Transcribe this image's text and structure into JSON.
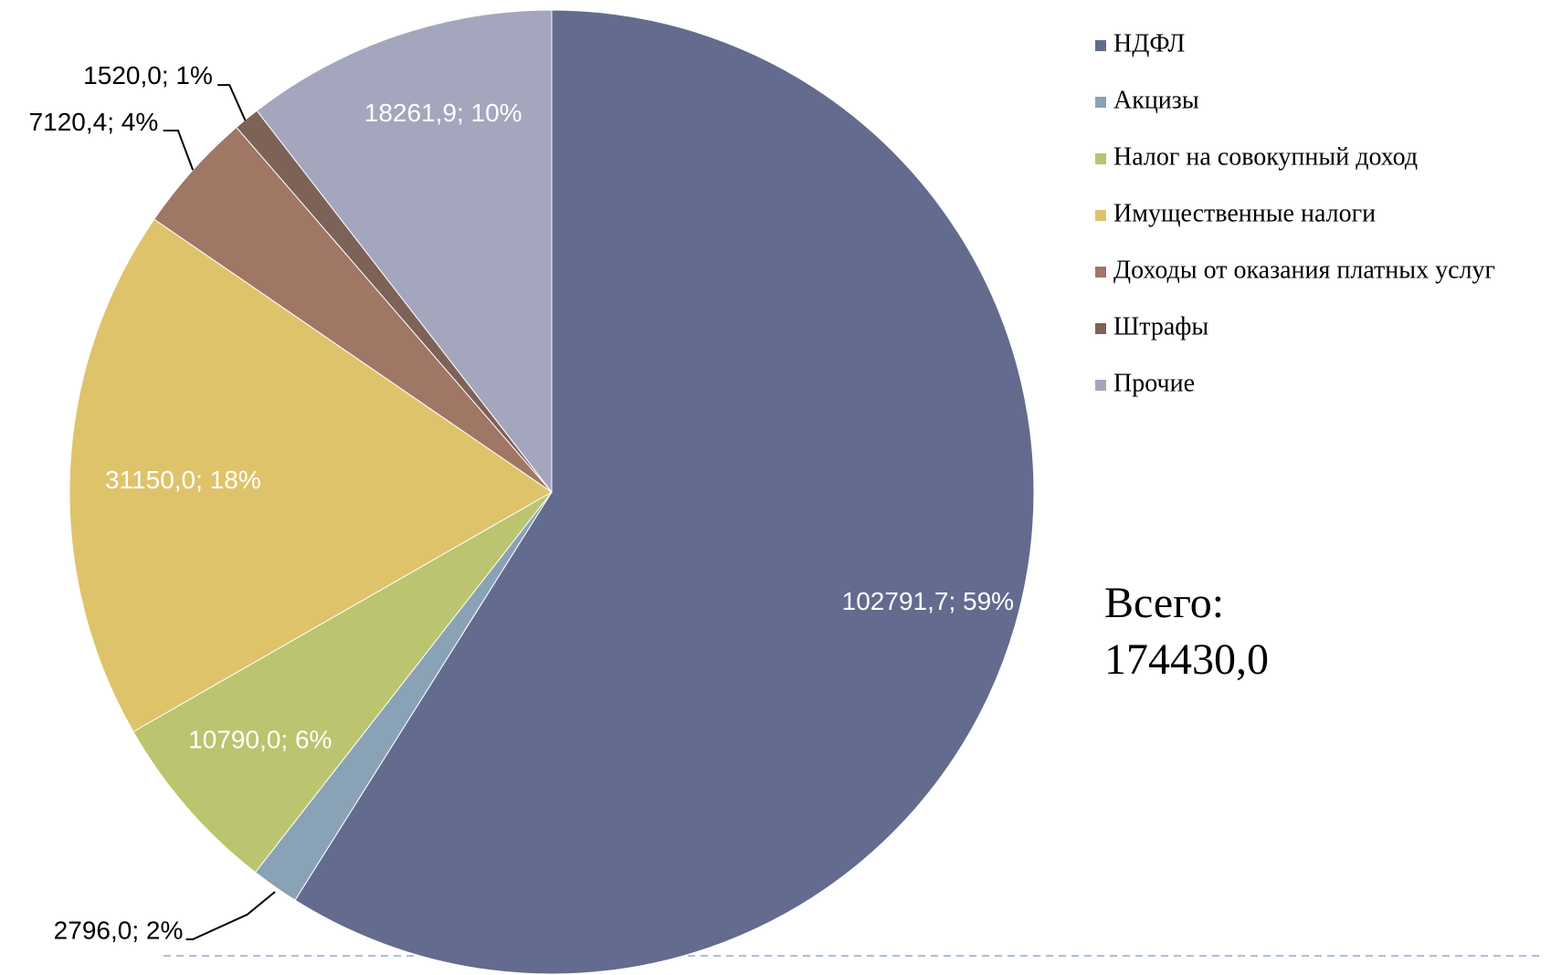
{
  "chart_data": {
    "type": "pie",
    "categories": [
      "НДФЛ",
      "Акцизы",
      "Налог на совокупный доход",
      "Имущественные налоги",
      "Доходы от оказания платных услуг",
      "Штрафы",
      "Прочие"
    ],
    "values": [
      102791.7,
      2796.0,
      10790.0,
      31150.0,
      7120.4,
      1520.0,
      18261.9
    ],
    "value_labels": [
      "102791,7; 59%",
      "2796,0; 2%",
      "10790,0; 6%",
      "31150,0; 18%",
      "7120,4; 4%",
      "1520,0; 1%",
      "18261,9; 10%"
    ],
    "colors": [
      "#636b8e",
      "#8aa2b5",
      "#bbc46e",
      "#dfc36b",
      "#a07665",
      "#7d6258",
      "#a3a6bd"
    ],
    "legend": "right",
    "total": {
      "label": "Всего:",
      "value": 174430.0,
      "value_label": "174430,0"
    }
  }
}
